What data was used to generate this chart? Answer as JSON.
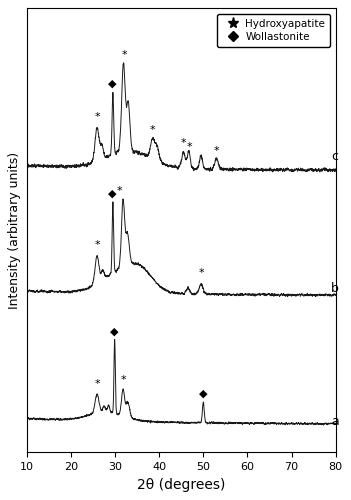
{
  "xlabel": "2θ (degrees)",
  "ylabel": "Intensity (arbitrary units)",
  "xlim": [
    10,
    80
  ],
  "x_ticks": [
    10,
    20,
    30,
    40,
    50,
    60,
    70,
    80
  ],
  "legend_star": "Hydroxyapatite",
  "legend_diamond": "Wollastonite",
  "label_a": "a",
  "label_b": "b",
  "label_c": "c",
  "line_color": "#1a1a1a",
  "noise_amp_a": 0.006,
  "noise_amp_b": 0.008,
  "noise_amp_c": 0.01,
  "scale_a": 0.22,
  "scale_b": 0.25,
  "scale_c": 0.28,
  "off_a": 0.05,
  "off_b": 0.38,
  "off_c": 0.7,
  "ylim": [
    -0.02,
    1.12
  ]
}
